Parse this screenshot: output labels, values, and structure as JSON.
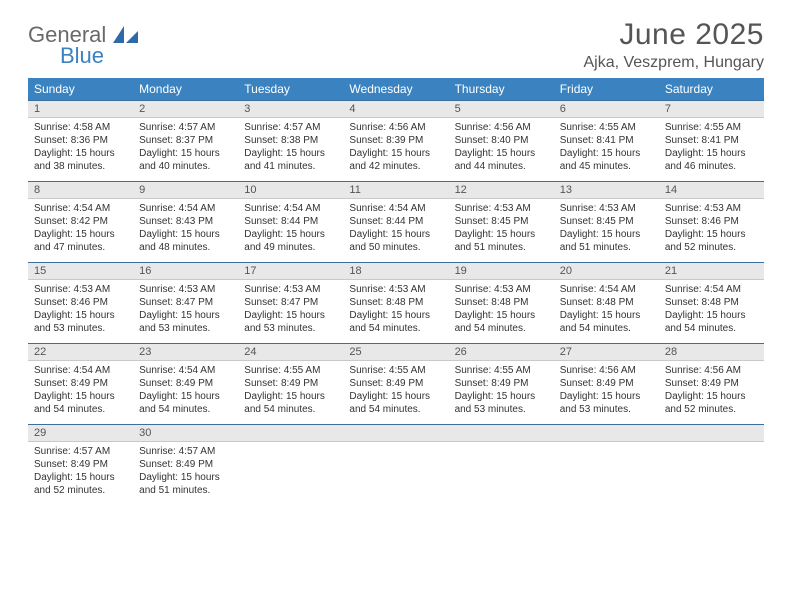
{
  "logo": {
    "word1": "General",
    "word2": "Blue"
  },
  "title": "June 2025",
  "location": "Ajka, Veszprem, Hungary",
  "colors": {
    "headerBg": "#3b83c0",
    "headerText": "#ffffff",
    "dayNumBg": "#e8e8e8",
    "borderTop": "#3b6fa0",
    "bodyText": "#333333",
    "titleText": "#555555"
  },
  "dayNames": [
    "Sunday",
    "Monday",
    "Tuesday",
    "Wednesday",
    "Thursday",
    "Friday",
    "Saturday"
  ],
  "weeks": [
    [
      {
        "n": "1",
        "sr": "4:58 AM",
        "ss": "8:36 PM",
        "dl": "15 hours and 38 minutes."
      },
      {
        "n": "2",
        "sr": "4:57 AM",
        "ss": "8:37 PM",
        "dl": "15 hours and 40 minutes."
      },
      {
        "n": "3",
        "sr": "4:57 AM",
        "ss": "8:38 PM",
        "dl": "15 hours and 41 minutes."
      },
      {
        "n": "4",
        "sr": "4:56 AM",
        "ss": "8:39 PM",
        "dl": "15 hours and 42 minutes."
      },
      {
        "n": "5",
        "sr": "4:56 AM",
        "ss": "8:40 PM",
        "dl": "15 hours and 44 minutes."
      },
      {
        "n": "6",
        "sr": "4:55 AM",
        "ss": "8:41 PM",
        "dl": "15 hours and 45 minutes."
      },
      {
        "n": "7",
        "sr": "4:55 AM",
        "ss": "8:41 PM",
        "dl": "15 hours and 46 minutes."
      }
    ],
    [
      {
        "n": "8",
        "sr": "4:54 AM",
        "ss": "8:42 PM",
        "dl": "15 hours and 47 minutes."
      },
      {
        "n": "9",
        "sr": "4:54 AM",
        "ss": "8:43 PM",
        "dl": "15 hours and 48 minutes."
      },
      {
        "n": "10",
        "sr": "4:54 AM",
        "ss": "8:44 PM",
        "dl": "15 hours and 49 minutes."
      },
      {
        "n": "11",
        "sr": "4:54 AM",
        "ss": "8:44 PM",
        "dl": "15 hours and 50 minutes."
      },
      {
        "n": "12",
        "sr": "4:53 AM",
        "ss": "8:45 PM",
        "dl": "15 hours and 51 minutes."
      },
      {
        "n": "13",
        "sr": "4:53 AM",
        "ss": "8:45 PM",
        "dl": "15 hours and 51 minutes."
      },
      {
        "n": "14",
        "sr": "4:53 AM",
        "ss": "8:46 PM",
        "dl": "15 hours and 52 minutes."
      }
    ],
    [
      {
        "n": "15",
        "sr": "4:53 AM",
        "ss": "8:46 PM",
        "dl": "15 hours and 53 minutes."
      },
      {
        "n": "16",
        "sr": "4:53 AM",
        "ss": "8:47 PM",
        "dl": "15 hours and 53 minutes."
      },
      {
        "n": "17",
        "sr": "4:53 AM",
        "ss": "8:47 PM",
        "dl": "15 hours and 53 minutes."
      },
      {
        "n": "18",
        "sr": "4:53 AM",
        "ss": "8:48 PM",
        "dl": "15 hours and 54 minutes."
      },
      {
        "n": "19",
        "sr": "4:53 AM",
        "ss": "8:48 PM",
        "dl": "15 hours and 54 minutes."
      },
      {
        "n": "20",
        "sr": "4:54 AM",
        "ss": "8:48 PM",
        "dl": "15 hours and 54 minutes."
      },
      {
        "n": "21",
        "sr": "4:54 AM",
        "ss": "8:48 PM",
        "dl": "15 hours and 54 minutes."
      }
    ],
    [
      {
        "n": "22",
        "sr": "4:54 AM",
        "ss": "8:49 PM",
        "dl": "15 hours and 54 minutes."
      },
      {
        "n": "23",
        "sr": "4:54 AM",
        "ss": "8:49 PM",
        "dl": "15 hours and 54 minutes."
      },
      {
        "n": "24",
        "sr": "4:55 AM",
        "ss": "8:49 PM",
        "dl": "15 hours and 54 minutes."
      },
      {
        "n": "25",
        "sr": "4:55 AM",
        "ss": "8:49 PM",
        "dl": "15 hours and 54 minutes."
      },
      {
        "n": "26",
        "sr": "4:55 AM",
        "ss": "8:49 PM",
        "dl": "15 hours and 53 minutes."
      },
      {
        "n": "27",
        "sr": "4:56 AM",
        "ss": "8:49 PM",
        "dl": "15 hours and 53 minutes."
      },
      {
        "n": "28",
        "sr": "4:56 AM",
        "ss": "8:49 PM",
        "dl": "15 hours and 52 minutes."
      }
    ],
    [
      {
        "n": "29",
        "sr": "4:57 AM",
        "ss": "8:49 PM",
        "dl": "15 hours and 52 minutes."
      },
      {
        "n": "30",
        "sr": "4:57 AM",
        "ss": "8:49 PM",
        "dl": "15 hours and 51 minutes."
      },
      null,
      null,
      null,
      null,
      null
    ]
  ],
  "labels": {
    "sunrise": "Sunrise: ",
    "sunset": "Sunset: ",
    "daylight": "Daylight: "
  }
}
